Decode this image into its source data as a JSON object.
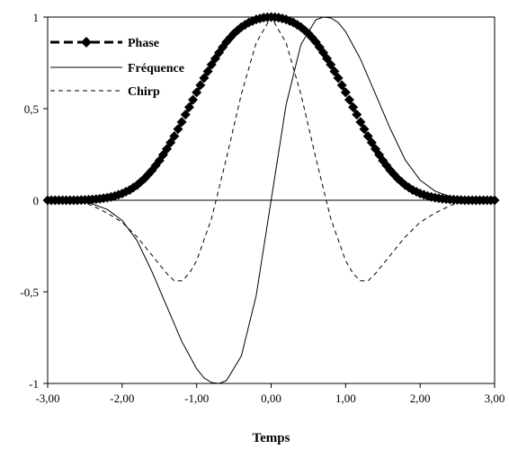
{
  "chart_data": {
    "type": "line",
    "xlabel": "Temps",
    "ylabel": "",
    "xlim": [
      -3,
      3
    ],
    "ylim": [
      -1,
      1
    ],
    "x_ticks": [
      {
        "value": -3,
        "label": "-3,00"
      },
      {
        "value": -2,
        "label": "-2,00"
      },
      {
        "value": -1,
        "label": "-1,00"
      },
      {
        "value": 0,
        "label": "0,00"
      },
      {
        "value": 1,
        "label": "1,00"
      },
      {
        "value": 2,
        "label": "2,00"
      },
      {
        "value": 3,
        "label": "3,00"
      }
    ],
    "y_ticks": [
      {
        "value": -1,
        "label": "-1"
      },
      {
        "value": -0.5,
        "label": "-0,5"
      },
      {
        "value": 0,
        "label": "0"
      },
      {
        "value": 0.5,
        "label": "0,5"
      },
      {
        "value": 1,
        "label": "1"
      }
    ],
    "grid": false,
    "legend_position": "top-left",
    "series": [
      {
        "name": "Phase",
        "style": "thick-dashed-diamond",
        "color": "#000000",
        "x": [
          -3.0,
          -2.9,
          -2.8,
          -2.7,
          -2.6,
          -2.5,
          -2.4,
          -2.3,
          -2.2,
          -2.1,
          -2.0,
          -1.9,
          -1.8,
          -1.7,
          -1.6,
          -1.5,
          -1.4,
          -1.3,
          -1.2,
          -1.1,
          -1.0,
          -0.9,
          -0.8,
          -0.7,
          -0.6,
          -0.5,
          -0.4,
          -0.3,
          -0.2,
          -0.1,
          0.0,
          0.1,
          0.2,
          0.3,
          0.4,
          0.5,
          0.6,
          0.7,
          0.8,
          0.9,
          1.0,
          1.1,
          1.2,
          1.3,
          1.4,
          1.5,
          1.6,
          1.7,
          1.8,
          1.9,
          2.0,
          2.1,
          2.2,
          2.3,
          2.4,
          2.5,
          2.6,
          2.7,
          2.8,
          2.9,
          3.0
        ],
        "y": [
          0.0,
          0.0,
          0.0,
          0.0,
          0.0,
          0.002,
          0.004,
          0.008,
          0.014,
          0.023,
          0.037,
          0.056,
          0.083,
          0.118,
          0.163,
          0.216,
          0.28,
          0.35,
          0.427,
          0.508,
          0.589,
          0.667,
          0.74,
          0.806,
          0.864,
          0.91,
          0.945,
          0.97,
          0.987,
          0.997,
          1.0,
          0.997,
          0.987,
          0.97,
          0.945,
          0.91,
          0.864,
          0.806,
          0.74,
          0.667,
          0.589,
          0.508,
          0.427,
          0.35,
          0.28,
          0.216,
          0.163,
          0.118,
          0.083,
          0.056,
          0.037,
          0.023,
          0.014,
          0.008,
          0.004,
          0.002,
          0.0,
          0.0,
          0.0,
          0.0,
          0.0
        ]
      },
      {
        "name": "Fréquence",
        "style": "thin-solid",
        "color": "#000000",
        "x": [
          -3.0,
          -2.8,
          -2.6,
          -2.5,
          -2.4,
          -2.2,
          -2.0,
          -1.8,
          -1.6,
          -1.4,
          -1.2,
          -1.0,
          -0.9,
          -0.8,
          -0.7,
          -0.6,
          -0.4,
          -0.2,
          0.0,
          0.2,
          0.4,
          0.6,
          0.7,
          0.8,
          0.9,
          1.0,
          1.2,
          1.4,
          1.6,
          1.8,
          2.0,
          2.2,
          2.4,
          2.5,
          2.6,
          2.8,
          3.0
        ],
        "y": [
          0.0,
          0.0,
          -0.004,
          -0.01,
          -0.02,
          -0.05,
          -0.11,
          -0.22,
          -0.39,
          -0.58,
          -0.77,
          -0.92,
          -0.97,
          -0.995,
          -1.0,
          -0.985,
          -0.85,
          -0.52,
          0.0,
          0.52,
          0.85,
          0.985,
          1.0,
          0.995,
          0.97,
          0.92,
          0.77,
          0.58,
          0.39,
          0.22,
          0.11,
          0.05,
          0.02,
          0.01,
          0.004,
          0.0,
          0.0
        ]
      },
      {
        "name": "Chirp",
        "style": "thin-dashed",
        "color": "#000000",
        "x": [
          -3.0,
          -2.6,
          -2.4,
          -2.2,
          -2.0,
          -1.8,
          -1.6,
          -1.4,
          -1.3,
          -1.2,
          -1.1,
          -1.0,
          -0.8,
          -0.6,
          -0.4,
          -0.2,
          0.0,
          0.2,
          0.4,
          0.6,
          0.8,
          1.0,
          1.1,
          1.2,
          1.3,
          1.4,
          1.6,
          1.8,
          2.0,
          2.2,
          2.4,
          2.6,
          3.0
        ],
        "y": [
          0.0,
          0.0,
          -0.03,
          -0.07,
          -0.12,
          -0.2,
          -0.3,
          -0.4,
          -0.44,
          -0.44,
          -0.4,
          -0.33,
          -0.1,
          0.23,
          0.58,
          0.86,
          1.0,
          0.86,
          0.58,
          0.23,
          -0.1,
          -0.33,
          -0.4,
          -0.44,
          -0.44,
          -0.4,
          -0.3,
          -0.2,
          -0.12,
          -0.07,
          -0.03,
          0.0,
          0.0
        ]
      }
    ]
  }
}
